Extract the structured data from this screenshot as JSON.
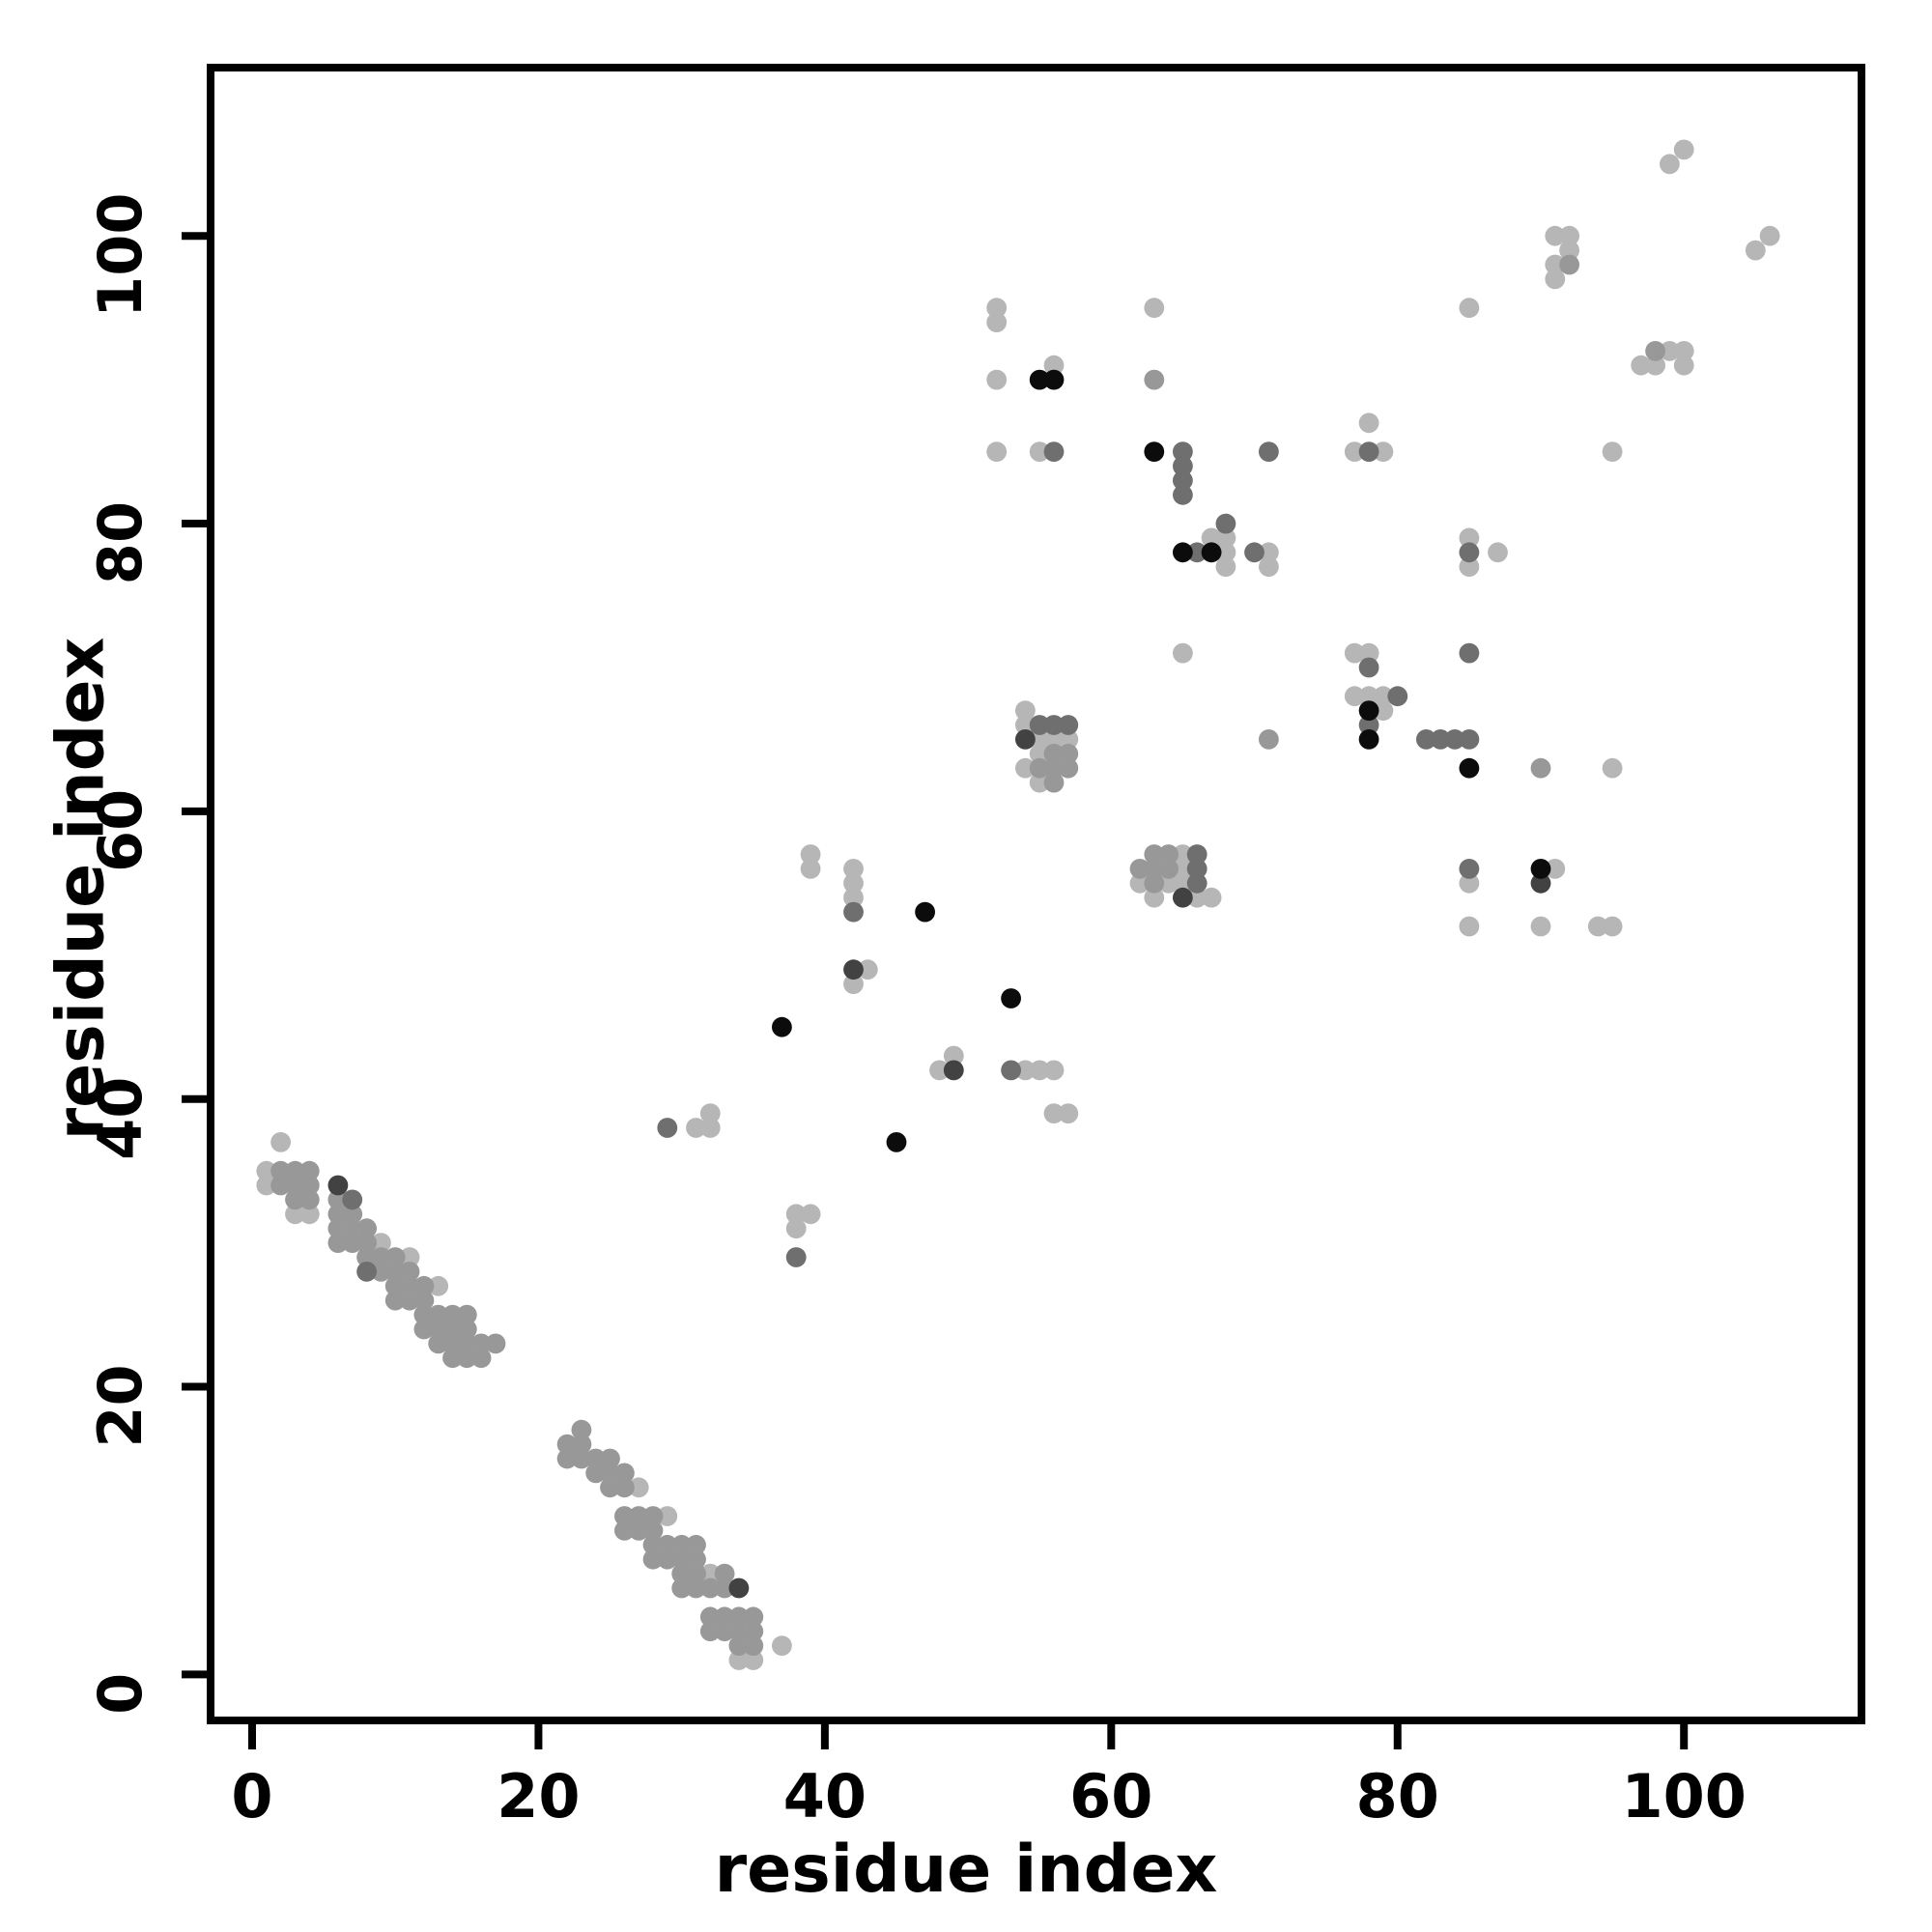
{
  "page": {
    "background": "#ffffff"
  },
  "chart_data": {
    "type": "scatter",
    "title": "",
    "xlabel": "residue index",
    "ylabel": "residue index",
    "xlim": [
      -2.9,
      112.4
    ],
    "ylim": [
      -3.2,
      111.7
    ],
    "xticks": [
      0,
      20,
      40,
      60,
      80,
      100
    ],
    "yticks": [
      0,
      20,
      40,
      60,
      80,
      100
    ],
    "grid": false,
    "legend": "none",
    "marker": "filled-circle",
    "point_diameter_units": 1.4,
    "shades": {
      "L": "#b6b6b6",
      "M": "#989898",
      "DM": "#6f6f6f",
      "D": "#424242",
      "B": "#0c0c0c"
    },
    "points": [
      [
        2,
        37,
        "L"
      ],
      [
        1,
        35,
        "L"
      ],
      [
        2,
        35,
        "M"
      ],
      [
        3,
        35,
        "M"
      ],
      [
        4,
        35,
        "M"
      ],
      [
        1,
        34,
        "L"
      ],
      [
        2,
        34,
        "M"
      ],
      [
        3,
        34,
        "M"
      ],
      [
        4,
        34,
        "M"
      ],
      [
        3,
        33,
        "M"
      ],
      [
        4,
        33,
        "M"
      ],
      [
        3,
        32,
        "L"
      ],
      [
        4,
        32,
        "L"
      ],
      [
        6,
        34,
        "D"
      ],
      [
        6,
        33,
        "M"
      ],
      [
        7,
        33,
        "DM"
      ],
      [
        6,
        32,
        "M"
      ],
      [
        7,
        32,
        "M"
      ],
      [
        6,
        31,
        "M"
      ],
      [
        7,
        31,
        "M"
      ],
      [
        8,
        31,
        "M"
      ],
      [
        6,
        30,
        "M"
      ],
      [
        7,
        30,
        "M"
      ],
      [
        8,
        30,
        "M"
      ],
      [
        9,
        30,
        "L"
      ],
      [
        8,
        29,
        "M"
      ],
      [
        9,
        29,
        "M"
      ],
      [
        10,
        29,
        "M"
      ],
      [
        11,
        29,
        "L"
      ],
      [
        8,
        28,
        "DM"
      ],
      [
        9,
        28,
        "M"
      ],
      [
        10,
        28,
        "M"
      ],
      [
        11,
        28,
        "M"
      ],
      [
        10,
        27,
        "M"
      ],
      [
        11,
        27,
        "M"
      ],
      [
        12,
        27,
        "M"
      ],
      [
        13,
        27,
        "L"
      ],
      [
        10,
        26,
        "M"
      ],
      [
        11,
        26,
        "M"
      ],
      [
        12,
        26,
        "M"
      ],
      [
        12,
        25,
        "M"
      ],
      [
        13,
        25,
        "M"
      ],
      [
        14,
        25,
        "M"
      ],
      [
        15,
        25,
        "M"
      ],
      [
        12,
        24,
        "M"
      ],
      [
        13,
        24,
        "M"
      ],
      [
        14,
        24,
        "M"
      ],
      [
        15,
        24,
        "M"
      ],
      [
        13,
        23,
        "M"
      ],
      [
        14,
        23,
        "M"
      ],
      [
        15,
        23,
        "M"
      ],
      [
        16,
        23,
        "M"
      ],
      [
        17,
        23,
        "M"
      ],
      [
        14,
        22,
        "M"
      ],
      [
        15,
        22,
        "M"
      ],
      [
        16,
        22,
        "M"
      ],
      [
        23,
        17,
        "M"
      ],
      [
        22,
        16,
        "M"
      ],
      [
        23,
        16,
        "M"
      ],
      [
        22,
        15,
        "M"
      ],
      [
        23,
        15,
        "M"
      ],
      [
        24,
        15,
        "M"
      ],
      [
        25,
        15,
        "M"
      ],
      [
        24,
        14,
        "M"
      ],
      [
        25,
        14,
        "M"
      ],
      [
        26,
        14,
        "M"
      ],
      [
        25,
        13,
        "M"
      ],
      [
        26,
        13,
        "M"
      ],
      [
        27,
        13,
        "L"
      ],
      [
        26,
        11,
        "M"
      ],
      [
        27,
        11,
        "M"
      ],
      [
        28,
        11,
        "M"
      ],
      [
        29,
        11,
        "L"
      ],
      [
        26,
        10,
        "M"
      ],
      [
        27,
        10,
        "M"
      ],
      [
        28,
        10,
        "M"
      ],
      [
        28,
        9,
        "M"
      ],
      [
        29,
        9,
        "M"
      ],
      [
        30,
        9,
        "M"
      ],
      [
        31,
        9,
        "M"
      ],
      [
        28,
        8,
        "M"
      ],
      [
        29,
        8,
        "M"
      ],
      [
        30,
        8,
        "M"
      ],
      [
        31,
        8,
        "M"
      ],
      [
        30,
        7,
        "M"
      ],
      [
        31,
        7,
        "M"
      ],
      [
        32,
        7,
        "L"
      ],
      [
        33,
        7,
        "M"
      ],
      [
        30,
        6,
        "M"
      ],
      [
        31,
        6,
        "M"
      ],
      [
        32,
        6,
        "M"
      ],
      [
        33,
        6,
        "M"
      ],
      [
        34,
        6,
        "D"
      ],
      [
        32,
        4,
        "M"
      ],
      [
        33,
        4,
        "M"
      ],
      [
        34,
        4,
        "M"
      ],
      [
        35,
        4,
        "M"
      ],
      [
        32,
        3,
        "M"
      ],
      [
        33,
        3,
        "M"
      ],
      [
        34,
        3,
        "M"
      ],
      [
        35,
        3,
        "M"
      ],
      [
        34,
        2,
        "M"
      ],
      [
        35,
        2,
        "M"
      ],
      [
        37,
        2,
        "L"
      ],
      [
        34,
        1,
        "L"
      ],
      [
        35,
        1,
        "L"
      ],
      [
        29,
        38,
        "DM"
      ],
      [
        31,
        38,
        "L"
      ],
      [
        32,
        38,
        "L"
      ],
      [
        32,
        39,
        "L"
      ],
      [
        38,
        32,
        "L"
      ],
      [
        39,
        32,
        "L"
      ],
      [
        38,
        31,
        "L"
      ],
      [
        38,
        29,
        "DM"
      ],
      [
        37,
        45,
        "B"
      ],
      [
        45,
        37,
        "B"
      ],
      [
        39,
        57,
        "L"
      ],
      [
        39,
        56,
        "L"
      ],
      [
        42,
        56,
        "L"
      ],
      [
        42,
        55,
        "L"
      ],
      [
        42,
        54,
        "L"
      ],
      [
        42,
        53,
        "DM"
      ],
      [
        47,
        53,
        "B"
      ],
      [
        53,
        47,
        "B"
      ],
      [
        42,
        49,
        "D"
      ],
      [
        43,
        49,
        "L"
      ],
      [
        42,
        48,
        "L"
      ],
      [
        49,
        43,
        "L"
      ],
      [
        48,
        42,
        "L"
      ],
      [
        49,
        42,
        "D"
      ],
      [
        53,
        42,
        "DM"
      ],
      [
        54,
        42,
        "L"
      ],
      [
        55,
        42,
        "L"
      ],
      [
        56,
        42,
        "L"
      ],
      [
        56,
        39,
        "L"
      ],
      [
        57,
        39,
        "L"
      ],
      [
        54,
        67,
        "L"
      ],
      [
        54,
        66,
        "L"
      ],
      [
        55,
        66,
        "DM"
      ],
      [
        56,
        66,
        "DM"
      ],
      [
        57,
        66,
        "DM"
      ],
      [
        54,
        65,
        "D"
      ],
      [
        55,
        65,
        "L"
      ],
      [
        56,
        65,
        "L"
      ],
      [
        57,
        65,
        "L"
      ],
      [
        55,
        64,
        "L"
      ],
      [
        56,
        64,
        "M"
      ],
      [
        57,
        64,
        "M"
      ],
      [
        54,
        63,
        "L"
      ],
      [
        55,
        63,
        "M"
      ],
      [
        56,
        63,
        "M"
      ],
      [
        57,
        63,
        "M"
      ],
      [
        55,
        62,
        "L"
      ],
      [
        56,
        62,
        "M"
      ],
      [
        67,
        54,
        "L"
      ],
      [
        66,
        54,
        "L"
      ],
      [
        66,
        55,
        "DM"
      ],
      [
        66,
        56,
        "DM"
      ],
      [
        66,
        57,
        "DM"
      ],
      [
        65,
        54,
        "D"
      ],
      [
        65,
        55,
        "L"
      ],
      [
        65,
        56,
        "L"
      ],
      [
        65,
        57,
        "L"
      ],
      [
        64,
        55,
        "L"
      ],
      [
        64,
        56,
        "M"
      ],
      [
        64,
        57,
        "M"
      ],
      [
        63,
        54,
        "L"
      ],
      [
        63,
        55,
        "M"
      ],
      [
        63,
        56,
        "M"
      ],
      [
        63,
        57,
        "M"
      ],
      [
        62,
        55,
        "L"
      ],
      [
        62,
        56,
        "M"
      ],
      [
        52,
        95,
        "L"
      ],
      [
        52,
        94,
        "L"
      ],
      [
        63,
        95,
        "L"
      ],
      [
        52,
        90,
        "L"
      ],
      [
        55,
        90,
        "B"
      ],
      [
        56,
        90,
        "B"
      ],
      [
        56,
        91,
        "L"
      ],
      [
        63,
        90,
        "M"
      ],
      [
        52,
        85,
        "L"
      ],
      [
        55,
        85,
        "L"
      ],
      [
        56,
        85,
        "DM"
      ],
      [
        63,
        85,
        "B"
      ],
      [
        65,
        85,
        "DM"
      ],
      [
        65,
        84,
        "DM"
      ],
      [
        65,
        83,
        "DM"
      ],
      [
        65,
        82,
        "DM"
      ],
      [
        71,
        85,
        "DM"
      ],
      [
        77,
        85,
        "L"
      ],
      [
        78,
        85,
        "DM"
      ],
      [
        79,
        85,
        "L"
      ],
      [
        78,
        87,
        "L"
      ],
      [
        68,
        80,
        "DM"
      ],
      [
        67,
        79,
        "L"
      ],
      [
        68,
        79,
        "L"
      ],
      [
        65,
        78,
        "B"
      ],
      [
        66,
        78,
        "DM"
      ],
      [
        67,
        78,
        "B"
      ],
      [
        68,
        78,
        "L"
      ],
      [
        70,
        78,
        "DM"
      ],
      [
        71,
        78,
        "L"
      ],
      [
        68,
        77,
        "L"
      ],
      [
        71,
        77,
        "L"
      ],
      [
        65,
        71,
        "L"
      ],
      [
        71,
        65,
        "M"
      ],
      [
        85,
        95,
        "L"
      ],
      [
        95,
        85,
        "L"
      ],
      [
        85,
        79,
        "L"
      ],
      [
        85,
        78,
        "DM"
      ],
      [
        85,
        77,
        "L"
      ],
      [
        87,
        78,
        "L"
      ],
      [
        85,
        71,
        "DM"
      ],
      [
        77,
        71,
        "L"
      ],
      [
        78,
        71,
        "L"
      ],
      [
        78,
        70,
        "DM"
      ],
      [
        77,
        68,
        "L"
      ],
      [
        78,
        68,
        "L"
      ],
      [
        79,
        68,
        "L"
      ],
      [
        80,
        68,
        "DM"
      ],
      [
        78,
        67,
        "B"
      ],
      [
        79,
        67,
        "L"
      ],
      [
        78,
        66,
        "DM"
      ],
      [
        78,
        65,
        "B"
      ],
      [
        82,
        65,
        "DM"
      ],
      [
        83,
        65,
        "DM"
      ],
      [
        84,
        65,
        "DM"
      ],
      [
        85,
        65,
        "DM"
      ],
      [
        85,
        63,
        "B"
      ],
      [
        90,
        63,
        "M"
      ],
      [
        95,
        63,
        "L"
      ],
      [
        85,
        56,
        "DM"
      ],
      [
        85,
        55,
        "L"
      ],
      [
        90,
        56,
        "B"
      ],
      [
        91,
        56,
        "L"
      ],
      [
        90,
        55,
        "D"
      ],
      [
        85,
        52,
        "L"
      ],
      [
        90,
        52,
        "L"
      ],
      [
        94,
        52,
        "L"
      ],
      [
        95,
        52,
        "L"
      ],
      [
        91,
        100,
        "L"
      ],
      [
        92,
        100,
        "L"
      ],
      [
        92,
        99,
        "L"
      ],
      [
        91,
        98,
        "L"
      ],
      [
        92,
        98,
        "M"
      ],
      [
        91,
        97,
        "L"
      ],
      [
        97,
        91,
        "L"
      ],
      [
        98,
        91,
        "L"
      ],
      [
        98,
        92,
        "M"
      ],
      [
        99,
        92,
        "L"
      ],
      [
        100,
        92,
        "L"
      ],
      [
        100,
        91,
        "L"
      ],
      [
        99,
        105,
        "L"
      ],
      [
        100,
        106,
        "L"
      ],
      [
        105,
        99,
        "L"
      ],
      [
        106,
        100,
        "L"
      ]
    ]
  }
}
